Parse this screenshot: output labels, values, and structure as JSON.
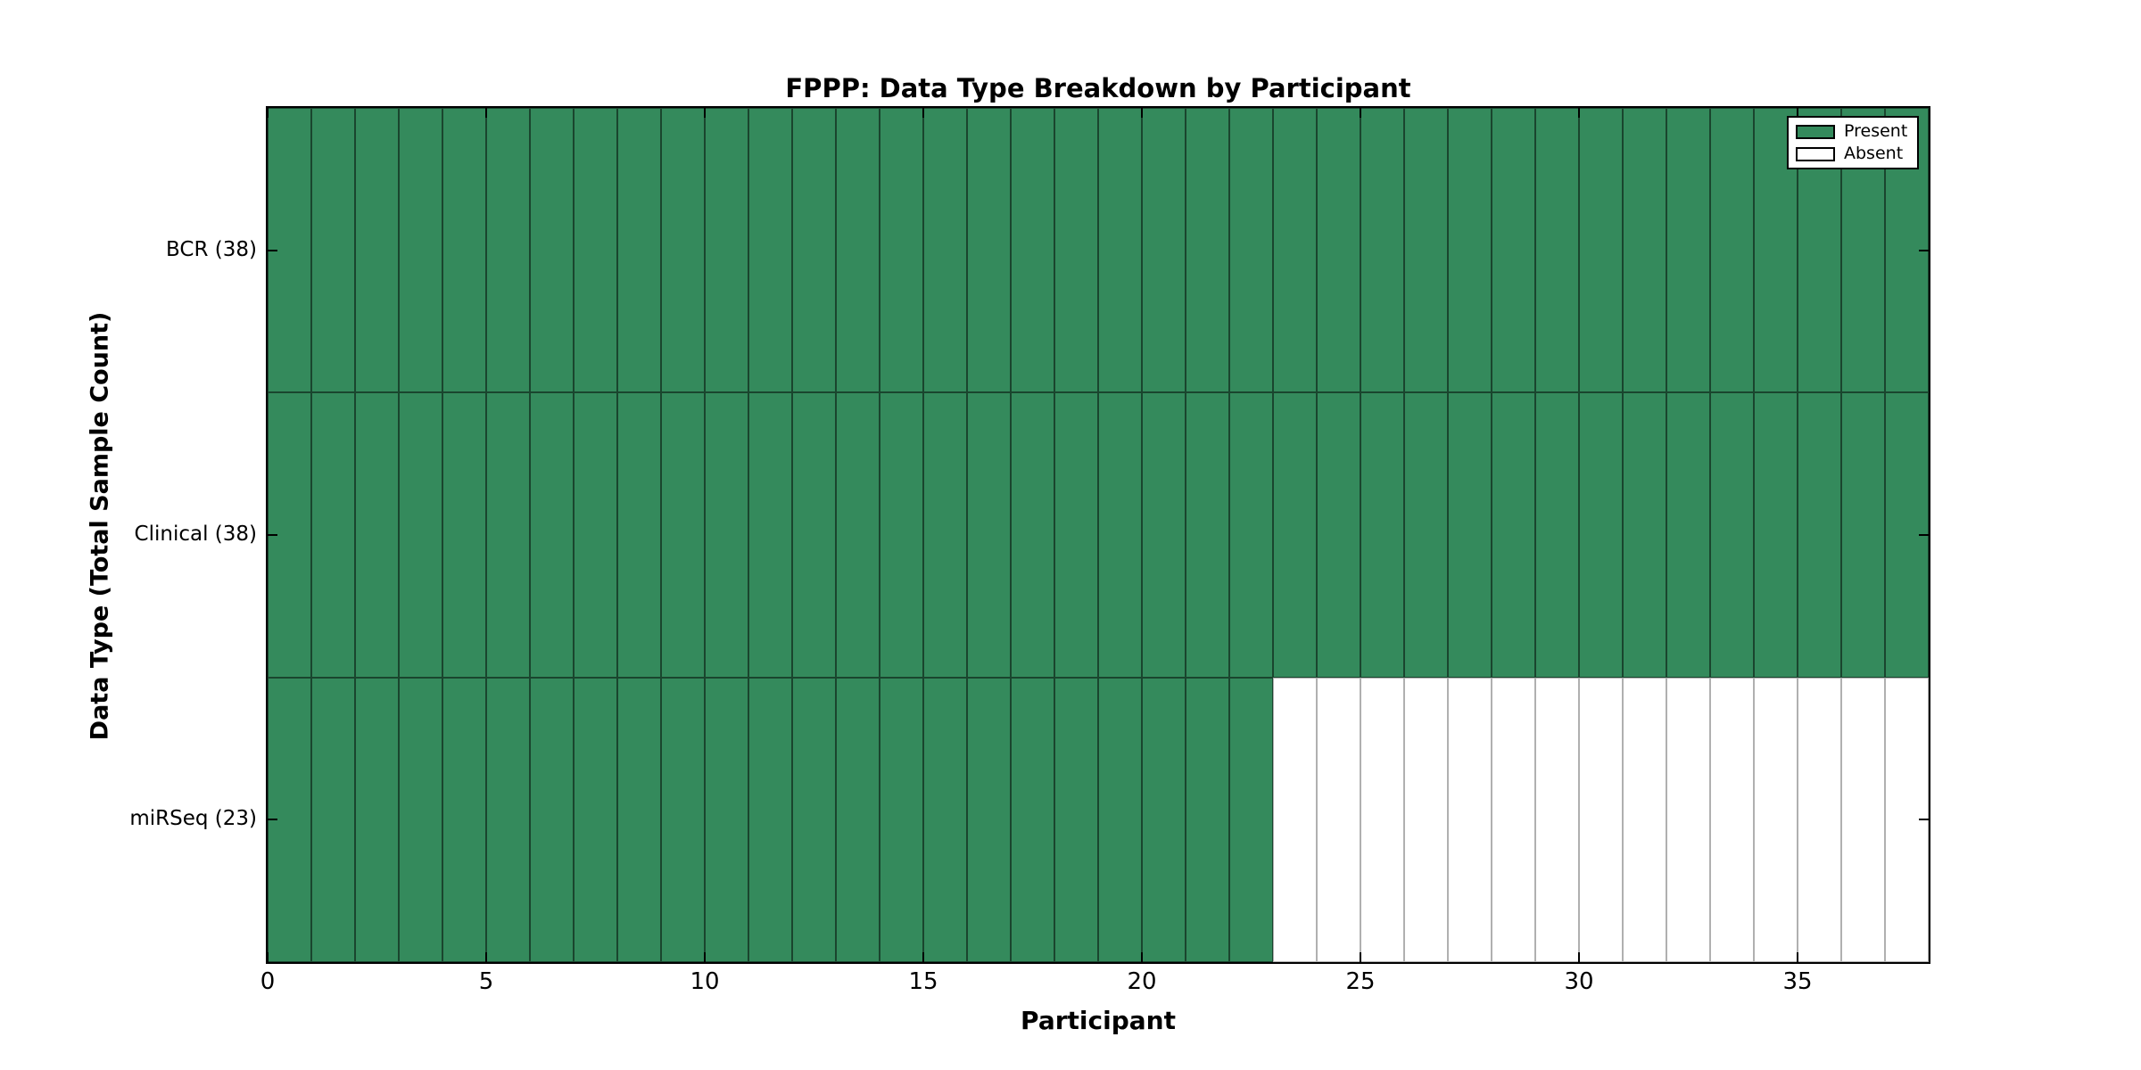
{
  "figure": {
    "title": "FPPP: Data Type Breakdown by Participant",
    "x_axis_label": "Participant",
    "y_axis_label": "Data Type (Total Sample Count)"
  },
  "legend": {
    "present_label": "Present",
    "absent_label": "Absent"
  },
  "colors": {
    "present_fill": "#348a5c",
    "present_border": "#1a452e",
    "absent_fill": "#ffffff",
    "absent_border": "#b0b0b0",
    "axis": "#000000"
  },
  "chart_data": {
    "type": "heatmap",
    "title": "FPPP: Data Type Breakdown by Participant",
    "xlabel": "Participant",
    "ylabel": "Data Type (Total Sample Count)",
    "x_range": [
      0,
      38
    ],
    "x_ticks": [
      0,
      5,
      10,
      15,
      20,
      25,
      30,
      35
    ],
    "n_participants": 38,
    "categories": [
      "BCR (38)",
      "Clinical (38)",
      "miRSeq (23)"
    ],
    "rows": [
      {
        "label": "BCR (38)",
        "data_type": "BCR",
        "total_sample_count": 38,
        "present_participants": 38,
        "absent_participants": 0
      },
      {
        "label": "Clinical (38)",
        "data_type": "Clinical",
        "total_sample_count": 38,
        "present_participants": 38,
        "absent_participants": 0
      },
      {
        "label": "miRSeq (23)",
        "data_type": "miRSeq",
        "total_sample_count": 23,
        "present_participants": 23,
        "absent_participants": 15
      }
    ],
    "legend_entries": [
      {
        "label": "Present",
        "color": "#348a5c"
      },
      {
        "label": "Absent",
        "color": "#ffffff"
      }
    ],
    "legend_position": "upper right",
    "grid": true,
    "tick_direction": "in"
  }
}
